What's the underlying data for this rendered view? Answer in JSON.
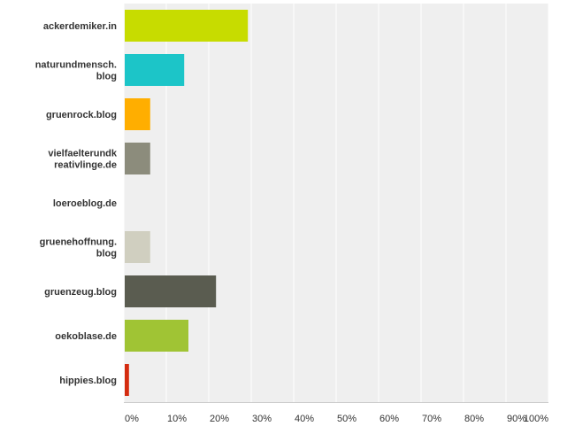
{
  "chart_data": {
    "type": "bar",
    "orientation": "horizontal",
    "categories": [
      [
        "ackerdemiker.in"
      ],
      [
        "naturundmensch.",
        "blog"
      ],
      [
        "gruenrock.blog"
      ],
      [
        "vielfaelterundk",
        "reativlinge.de"
      ],
      [
        "loeroeblog.de"
      ],
      [
        "gruenehoffnung.",
        "blog"
      ],
      [
        "gruenzeug.blog"
      ],
      [
        "oekoblase.de"
      ],
      [
        "hippies.blog"
      ]
    ],
    "values": [
      29,
      14,
      6,
      6,
      0,
      6,
      21.5,
      15,
      1
    ],
    "colors": [
      "#c7dc00",
      "#1cc5c8",
      "#ffae00",
      "#8c8c7c",
      "#a0a0a0",
      "#d0cfc0",
      "#5a5c50",
      "#a0c434",
      "#d42c10"
    ],
    "xlim": [
      0,
      100
    ],
    "xticks": [
      "0%",
      "10%",
      "20%",
      "30%",
      "40%",
      "50%",
      "60%",
      "70%",
      "80%",
      "90%",
      "100%"
    ],
    "grid": true,
    "background_color": "#efefef"
  }
}
